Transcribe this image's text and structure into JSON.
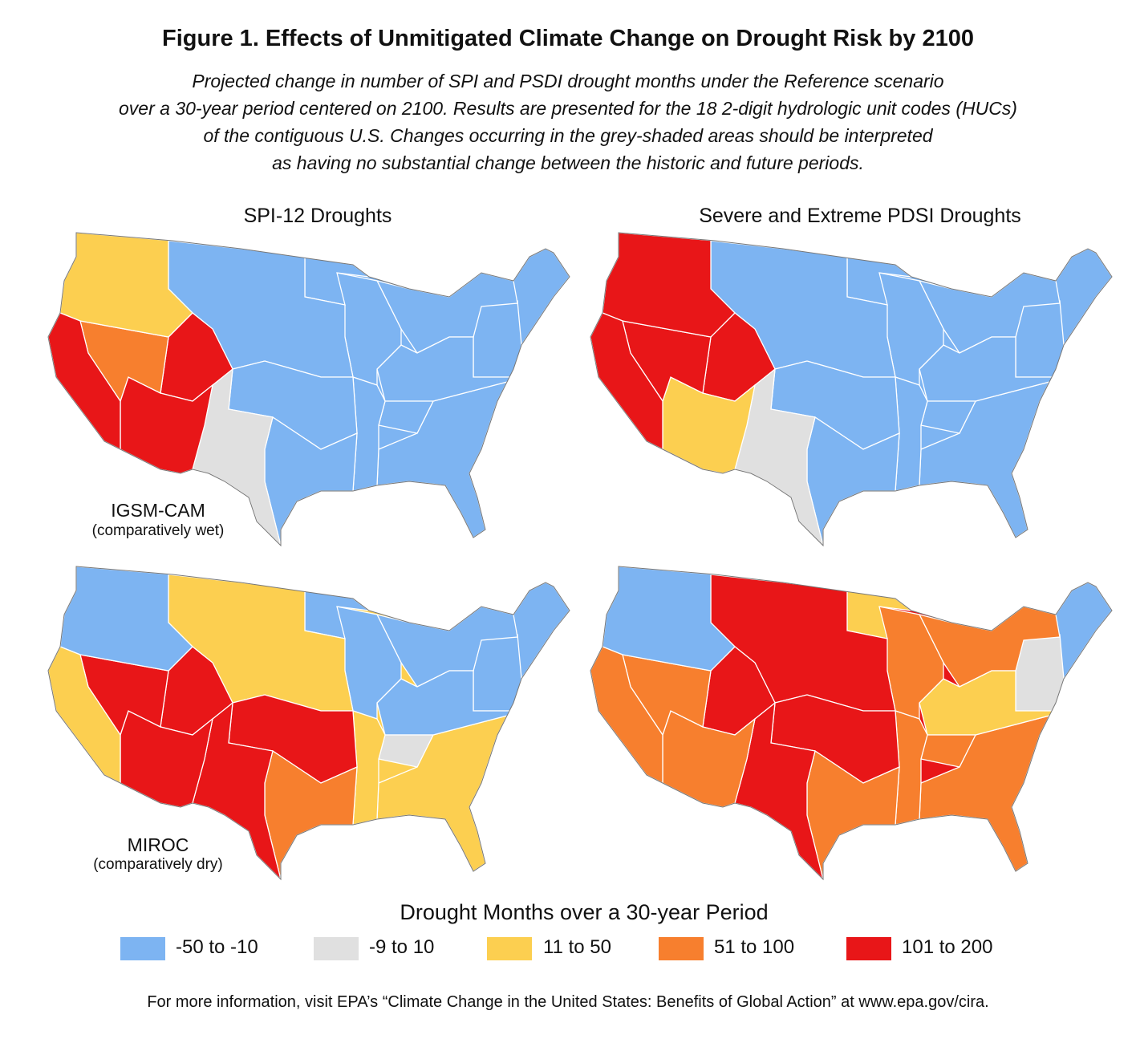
{
  "title": "Figure 1. Effects of Unmitigated Climate Change on Drought Risk by 2100",
  "subtitle_lines": [
    "Projected change in number of SPI and PSDI drought months under the Reference scenario",
    "over a 30-year period centered on 2100. Results are presented for the 18 2-digit hydrologic unit codes (HUCs)",
    "of the contiguous U.S. Changes occurring in the grey-shaded areas should be interpreted",
    "as having no substantial change between the historic and future periods."
  ],
  "columns": {
    "spi": "SPI-12 Droughts",
    "pdsi": "Severe and Extreme PDSI Droughts"
  },
  "rows": {
    "igsm": {
      "label": "IGSM-CAM",
      "note": "(comparatively wet)"
    },
    "miroc": {
      "label": "MIROC",
      "note": "(comparatively dry)"
    }
  },
  "legend": {
    "title": "Drought Months over a 30-year Period",
    "items": [
      {
        "label": "-50 to -10",
        "color": "#7db4f2"
      },
      {
        "label": "-9 to 10",
        "color": "#e0e0e0"
      },
      {
        "label": "11 to 50",
        "color": "#fccf50"
      },
      {
        "label": "51 to 100",
        "color": "#f77f2e"
      },
      {
        "label": "101 to 200",
        "color": "#e81618"
      }
    ]
  },
  "map_data": {
    "huc_ids": [
      1,
      2,
      3,
      4,
      5,
      6,
      7,
      8,
      9,
      10,
      11,
      12,
      13,
      14,
      15,
      16,
      17,
      18
    ],
    "igsm_spi": [
      0,
      0,
      0,
      0,
      0,
      0,
      0,
      0,
      0,
      0,
      0,
      0,
      1,
      4,
      4,
      3,
      2,
      4
    ],
    "igsm_pdsi": [
      0,
      0,
      0,
      0,
      0,
      0,
      0,
      0,
      0,
      0,
      0,
      0,
      1,
      4,
      2,
      4,
      4,
      4
    ],
    "miroc_spi": [
      0,
      0,
      2,
      0,
      0,
      1,
      0,
      2,
      0,
      2,
      4,
      3,
      4,
      4,
      4,
      4,
      0,
      2
    ],
    "miroc_pdsi": [
      0,
      1,
      3,
      3,
      2,
      3,
      3,
      3,
      2,
      4,
      4,
      3,
      4,
      4,
      3,
      3,
      0,
      3
    ]
  },
  "footer": "For more information, visit EPA’s “Climate Change in the United States: Benefits of Global Action” at www.epa.gov/cira."
}
